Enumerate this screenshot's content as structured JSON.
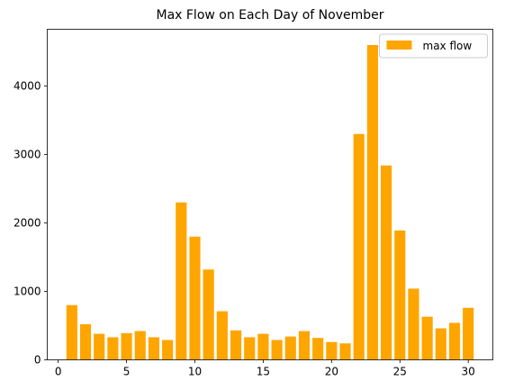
{
  "chart_data": {
    "type": "bar",
    "title": "Max Flow on Each Day of November",
    "xlabel": "",
    "ylabel": "",
    "x": [
      1,
      2,
      3,
      4,
      5,
      6,
      7,
      8,
      9,
      10,
      11,
      12,
      13,
      14,
      15,
      16,
      17,
      18,
      19,
      20,
      21,
      22,
      23,
      24,
      25,
      26,
      27,
      28,
      29,
      30
    ],
    "series": [
      {
        "name": "max flow",
        "color": "#ffa500",
        "values": [
          800,
          520,
          380,
          330,
          390,
          420,
          330,
          290,
          2300,
          1800,
          1320,
          710,
          430,
          330,
          380,
          290,
          340,
          420,
          320,
          260,
          240,
          3300,
          4600,
          2840,
          1890,
          1040,
          630,
          460,
          540,
          760
        ]
      }
    ],
    "xlim": [
      -0.8,
      31.8
    ],
    "ylim": [
      0,
      4830
    ],
    "xticks": [
      0,
      5,
      10,
      15,
      20,
      25,
      30
    ],
    "yticks": [
      0,
      1000,
      2000,
      3000,
      4000
    ],
    "grid": false,
    "legend": "top-right"
  }
}
